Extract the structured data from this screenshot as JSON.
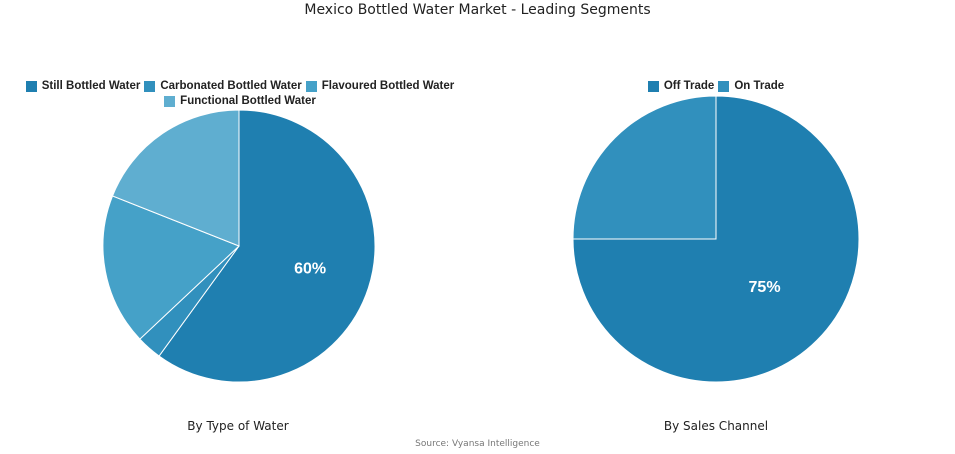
{
  "title": "Mexico Bottled Water Market - Leading Segments",
  "source": "Source: Vyansa Intelligence",
  "chart_data": [
    {
      "type": "pie",
      "subtitle": "By Type of Water",
      "legend_position": "top",
      "slices": [
        {
          "label": "Still Bottled Water",
          "value": 60,
          "color": "#1f7fb0",
          "data_label": "60%"
        },
        {
          "label": "Carbonated Bottled Water",
          "value": 3,
          "color": "#3190bd",
          "data_label": ""
        },
        {
          "label": "Flavoured Bottled Water",
          "value": 18,
          "color": "#45a1c8",
          "data_label": ""
        },
        {
          "label": "Functional Bottled Water",
          "value": 19,
          "color": "#5faed0",
          "data_label": ""
        }
      ]
    },
    {
      "type": "pie",
      "subtitle": "By Sales Channel",
      "legend_position": "top",
      "slices": [
        {
          "label": "Off Trade",
          "value": 75,
          "color": "#1f7fb0",
          "data_label": "75%"
        },
        {
          "label": "On Trade",
          "value": 25,
          "color": "#3190bd",
          "data_label": ""
        }
      ]
    }
  ]
}
